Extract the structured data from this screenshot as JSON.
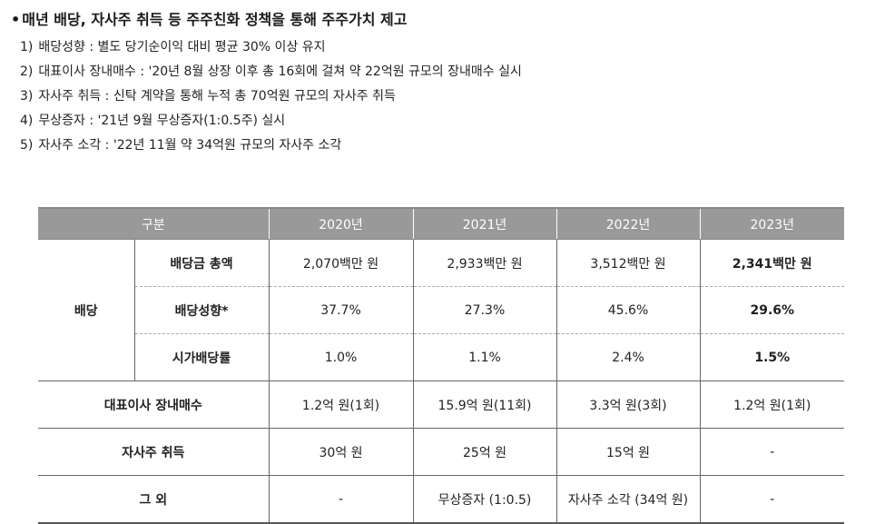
{
  "heading": {
    "bullet": "•",
    "text": "매년 배당, 자사주 취득 등 주주친화 정책을 통해 주주가치 제고"
  },
  "items": [
    {
      "num": "1)",
      "text": "배당성향 : 별도 당기순이익 대비 평균 30% 이상 유지"
    },
    {
      "num": "2)",
      "text": "대표이사 장내매수 : '20년 8월 상장 이후 총 16회에 걸쳐 약 22억원 규모의 장내매수 실시"
    },
    {
      "num": "3)",
      "text": "자사주 취득 : 신탁 계약을 통해 누적 총 70억원 규모의 자사주 취득"
    },
    {
      "num": "4)",
      "text": "무상증자 : '21년 9월 무상증자(1:0.5주) 실시"
    },
    {
      "num": "5)",
      "text": "자사주 소각 : '22년 11월 약 34억원 규모의 자사주 소각"
    }
  ],
  "table": {
    "header": [
      "구분",
      "2020년",
      "2021년",
      "2022년",
      "2023년"
    ],
    "dividend_group": "배당",
    "rows": [
      {
        "label": "배당금 총액",
        "values": [
          "2,070백만 원",
          "2,933백만 원",
          "3,512백만 원",
          "2,341백만 원"
        ]
      },
      {
        "label": "배당성향*",
        "values": [
          "37.7%",
          "27.3%",
          "45.6%",
          "29.6%"
        ]
      },
      {
        "label": "시가배당률",
        "values": [
          "1.0%",
          "1.1%",
          "2.4%",
          "1.5%"
        ]
      },
      {
        "label": "대표이사 장내매수",
        "values": [
          "1.2억 원(1회)",
          "15.9억 원(11회)",
          "3.3억 원(3회)",
          "1.2억 원(1회)"
        ]
      },
      {
        "label": "자사주 취득",
        "values": [
          "30억 원",
          "25억 원",
          "15억 원",
          "-"
        ]
      },
      {
        "label": "그 외",
        "values": [
          "-",
          "무상증자 (1:0.5)",
          "자사주 소각 (34억 원)",
          "-"
        ]
      }
    ]
  }
}
